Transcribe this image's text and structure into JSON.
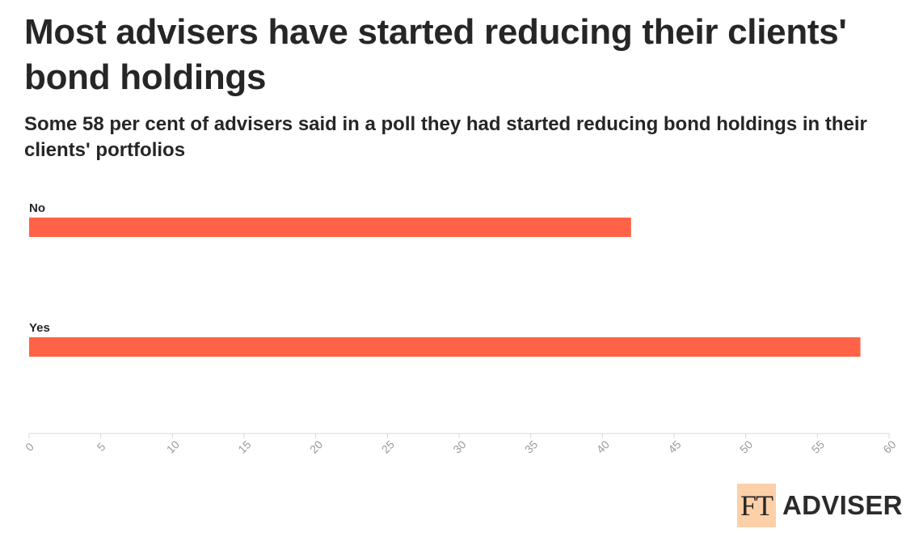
{
  "title": "Most advisers have started reducing their clients' bond holdings",
  "subtitle": "Some 58 per cent of advisers said in a poll they had started reducing bond holdings in their clients' portfolios",
  "logo": {
    "ft": "FT",
    "name": "ADVISER"
  },
  "colors": {
    "bar": "#ff6347",
    "axis": "#d9d9d9",
    "tick_text": "#9a9a9a"
  },
  "chart_data": {
    "type": "bar",
    "orientation": "horizontal",
    "categories": [
      "No",
      "Yes"
    ],
    "values": [
      42,
      58
    ],
    "xlim": [
      0,
      60
    ],
    "xticks": [
      0,
      5,
      10,
      15,
      20,
      25,
      30,
      35,
      40,
      45,
      50,
      55,
      60
    ],
    "xlabel": "",
    "ylabel": "",
    "grid": false,
    "legend": "none"
  }
}
